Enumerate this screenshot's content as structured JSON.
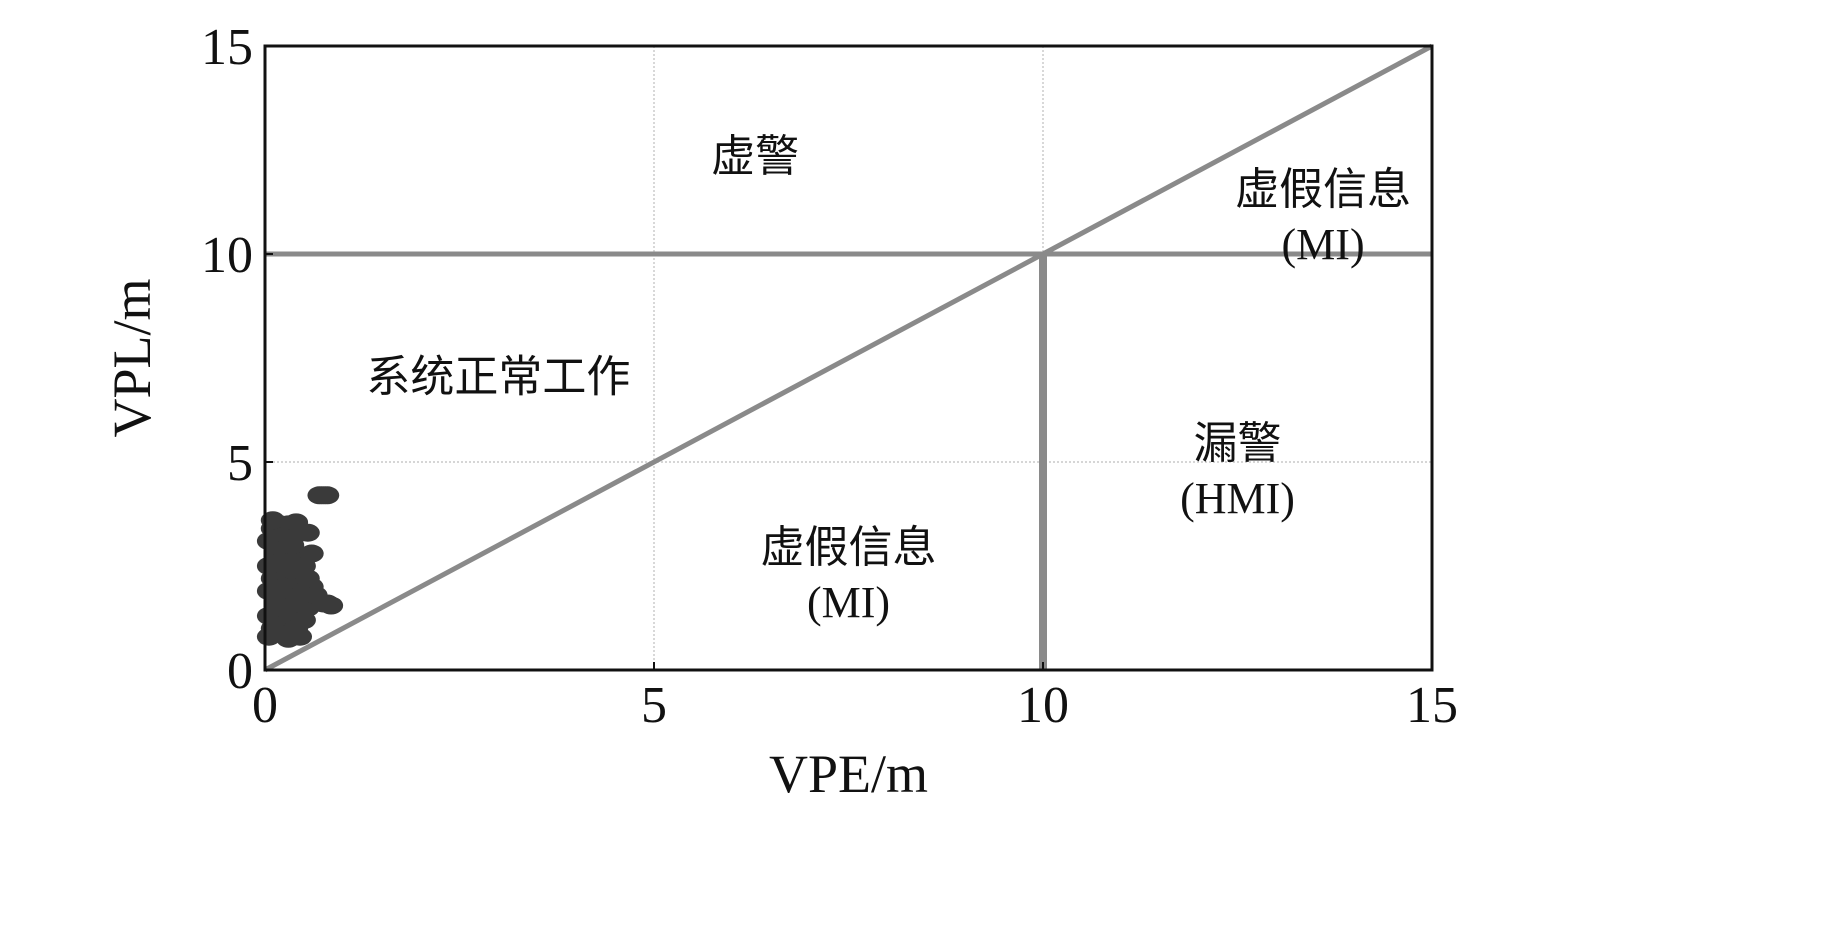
{
  "chart_data": {
    "type": "scatter",
    "xlabel": "VPE/m",
    "ylabel": "VPL/m",
    "xlim": [
      0,
      15
    ],
    "ylim": [
      0,
      15
    ],
    "x_ticks": [
      "0",
      "5",
      "10",
      "15"
    ],
    "y_ticks": [
      "0",
      "5",
      "10",
      "15"
    ],
    "grid": true,
    "colors": {
      "points": "#3a3a3a",
      "boundary_lines": "#8a8a8a",
      "grid": "#bdbdbd",
      "frame": "#111111"
    },
    "boundaries": [
      {
        "type": "diagonal",
        "from": [
          0,
          0
        ],
        "to": [
          15,
          15
        ]
      },
      {
        "type": "horizontal",
        "y": 10,
        "x_range": [
          0,
          15
        ]
      },
      {
        "type": "vertical",
        "x": 10,
        "y_range": [
          0,
          10
        ]
      }
    ],
    "regions": [
      {
        "lines": [
          "虚警"
        ],
        "x": 6.3,
        "y": 12
      },
      {
        "lines": [
          "虚假信息",
          "(MI)"
        ],
        "x": 13.6,
        "y": 11.2
      },
      {
        "lines": [
          "系统正常工作"
        ],
        "x": 3.0,
        "y": 6.7
      },
      {
        "lines": [
          "漏警",
          "(HMI)"
        ],
        "x": 12.5,
        "y": 5.1
      },
      {
        "lines": [
          "虚假信息",
          "(MI)"
        ],
        "x": 7.5,
        "y": 2.6
      }
    ],
    "points": [
      {
        "x": 0.05,
        "y": 0.8
      },
      {
        "x": 0.1,
        "y": 1.0
      },
      {
        "x": 0.05,
        "y": 1.3
      },
      {
        "x": 0.15,
        "y": 1.6
      },
      {
        "x": 0.05,
        "y": 1.9
      },
      {
        "x": 0.1,
        "y": 2.2
      },
      {
        "x": 0.05,
        "y": 2.5
      },
      {
        "x": 0.15,
        "y": 2.8
      },
      {
        "x": 0.05,
        "y": 3.1
      },
      {
        "x": 0.1,
        "y": 3.4
      },
      {
        "x": 0.2,
        "y": 3.5
      },
      {
        "x": 0.3,
        "y": 3.5
      },
      {
        "x": 0.2,
        "y": 3.2
      },
      {
        "x": 0.25,
        "y": 2.9
      },
      {
        "x": 0.2,
        "y": 2.6
      },
      {
        "x": 0.3,
        "y": 2.3
      },
      {
        "x": 0.25,
        "y": 2.0
      },
      {
        "x": 0.2,
        "y": 1.7
      },
      {
        "x": 0.3,
        "y": 1.4
      },
      {
        "x": 0.25,
        "y": 1.1
      },
      {
        "x": 0.15,
        "y": 0.9
      },
      {
        "x": 0.35,
        "y": 1.3
      },
      {
        "x": 0.4,
        "y": 1.6
      },
      {
        "x": 0.35,
        "y": 1.9
      },
      {
        "x": 0.4,
        "y": 2.1
      },
      {
        "x": 0.35,
        "y": 2.4
      },
      {
        "x": 0.4,
        "y": 2.7
      },
      {
        "x": 0.35,
        "y": 3.0
      },
      {
        "x": 0.45,
        "y": 3.3
      },
      {
        "x": 0.55,
        "y": 3.3
      },
      {
        "x": 0.6,
        "y": 2.8
      },
      {
        "x": 0.5,
        "y": 2.5
      },
      {
        "x": 0.55,
        "y": 2.2
      },
      {
        "x": 0.45,
        "y": 1.8
      },
      {
        "x": 0.55,
        "y": 1.5
      },
      {
        "x": 0.5,
        "y": 1.9
      },
      {
        "x": 0.6,
        "y": 2.0
      },
      {
        "x": 0.5,
        "y": 1.2
      },
      {
        "x": 0.4,
        "y": 1.0
      },
      {
        "x": 0.65,
        "y": 1.8
      },
      {
        "x": 0.45,
        "y": 0.8
      },
      {
        "x": 0.3,
        "y": 0.75
      },
      {
        "x": 0.1,
        "y": 3.6
      },
      {
        "x": 0.4,
        "y": 3.55
      },
      {
        "x": 0.8,
        "y": 1.6
      },
      {
        "x": 0.85,
        "y": 1.55
      },
      {
        "x": 0.75,
        "y": 1.6
      },
      {
        "x": 0.7,
        "y": 4.2
      },
      {
        "x": 0.75,
        "y": 4.2
      },
      {
        "x": 0.8,
        "y": 4.2
      }
    ]
  }
}
